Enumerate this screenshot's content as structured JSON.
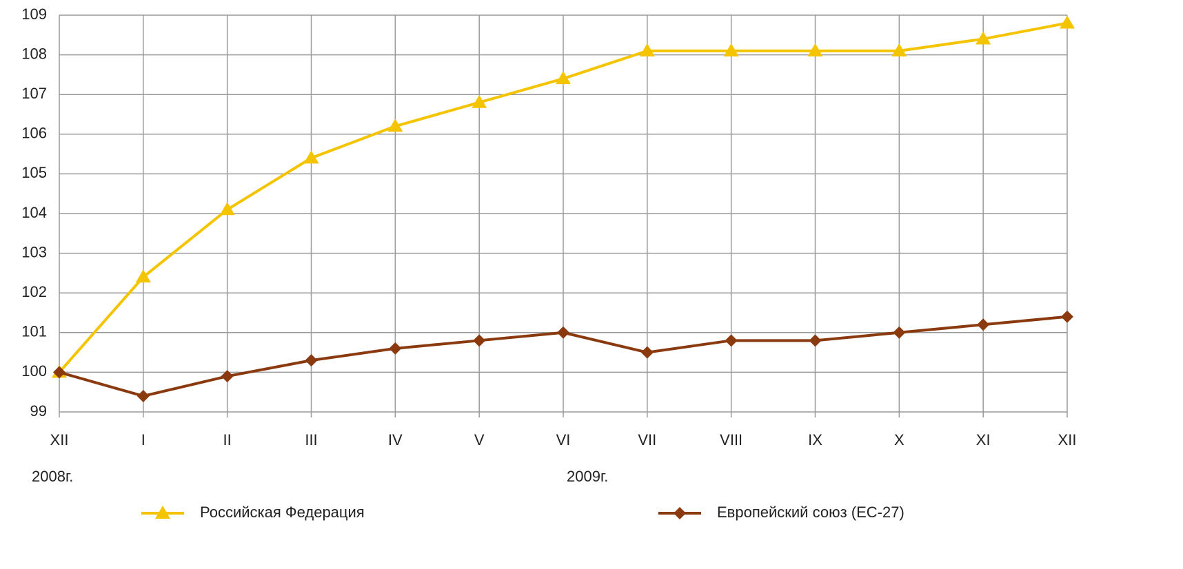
{
  "chart_data": {
    "type": "line",
    "categories": [
      "XII",
      "I",
      "II",
      "III",
      "IV",
      "V",
      "VI",
      "VII",
      "VIII",
      "IX",
      "X",
      "XI",
      "XII"
    ],
    "year_labels": [
      "2008г.",
      null,
      null,
      null,
      null,
      null,
      "2009г.",
      null,
      null,
      null,
      null,
      null,
      null
    ],
    "series": [
      {
        "name": "Российская Федерация",
        "color": "#f5c400",
        "marker": "triangle",
        "values": [
          100,
          102.4,
          104.1,
          105.4,
          106.2,
          106.8,
          107.4,
          108.1,
          108.1,
          108.1,
          108.1,
          108.4,
          108.8
        ]
      },
      {
        "name": "Европейский союз (ЕС-27)",
        "color": "#8b3a0f",
        "marker": "diamond",
        "values": [
          100,
          99.4,
          99.9,
          100.3,
          100.6,
          100.8,
          101.0,
          100.5,
          100.8,
          100.8,
          101.0,
          101.2,
          101.4
        ]
      }
    ],
    "ylim": [
      99,
      109
    ],
    "yticks": [
      99,
      100,
      101,
      102,
      103,
      104,
      105,
      106,
      107,
      108,
      109
    ],
    "grid": true,
    "legend": "bottom"
  }
}
